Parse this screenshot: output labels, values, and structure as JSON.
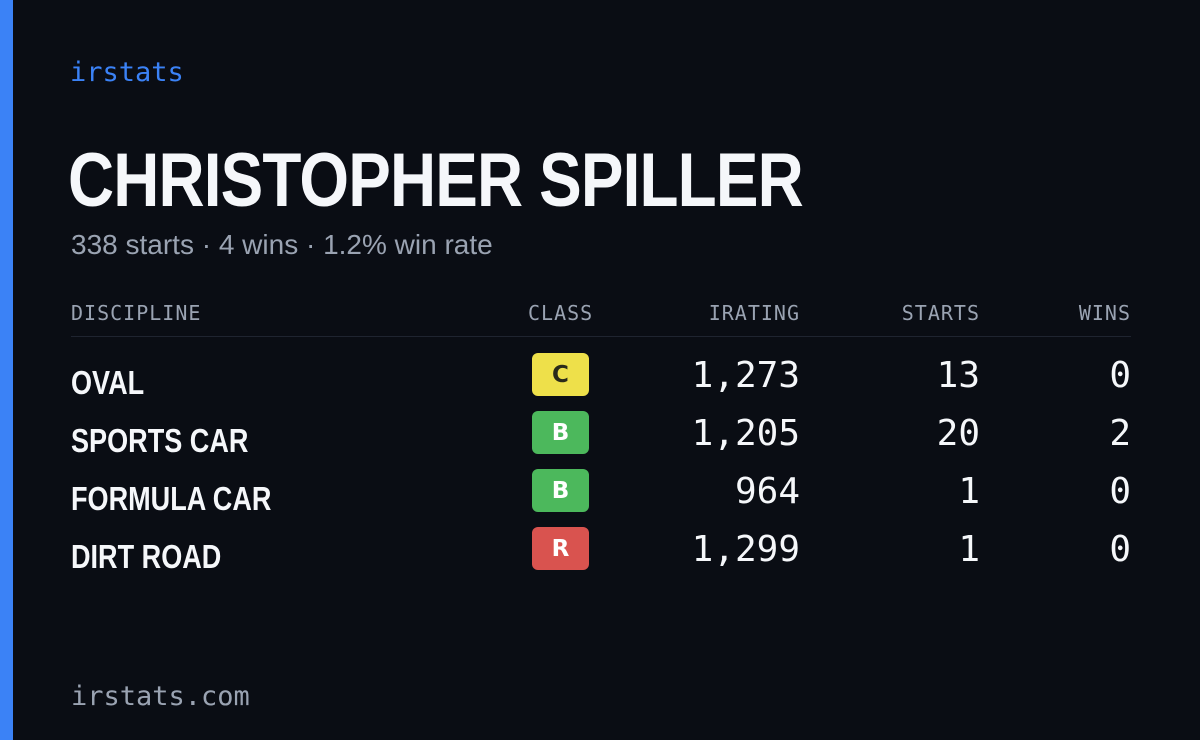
{
  "brand": "irstats",
  "driver": {
    "name": "CHRISTOPHER SPILLER",
    "summary": "338 starts · 4 wins · 1.2% win rate"
  },
  "table": {
    "headers": {
      "discipline": "DISCIPLINE",
      "class": "CLASS",
      "irating": "IRATING",
      "starts": "STARTS",
      "wins": "WINS"
    },
    "rows": [
      {
        "discipline": "OVAL",
        "class": "C",
        "class_color": "#eee04a",
        "class_text_color": "#2a2a1a",
        "irating": "1,273",
        "starts": "13",
        "wins": "0"
      },
      {
        "discipline": "SPORTS CAR",
        "class": "B",
        "class_color": "#4cb85c",
        "class_text_color": "#ffffff",
        "irating": "1,205",
        "starts": "20",
        "wins": "2"
      },
      {
        "discipline": "FORMULA CAR",
        "class": "B",
        "class_color": "#4cb85c",
        "class_text_color": "#ffffff",
        "irating": "964",
        "starts": "1",
        "wins": "0"
      },
      {
        "discipline": "DIRT ROAD",
        "class": "R",
        "class_color": "#d9534f",
        "class_text_color": "#ffffff",
        "irating": "1,299",
        "starts": "1",
        "wins": "0"
      }
    ]
  },
  "footer": "irstats.com",
  "colors": {
    "background": "#0a0d14",
    "accent": "#3b82f6",
    "text": "#f5f7fa",
    "muted": "#9aa3b2"
  }
}
